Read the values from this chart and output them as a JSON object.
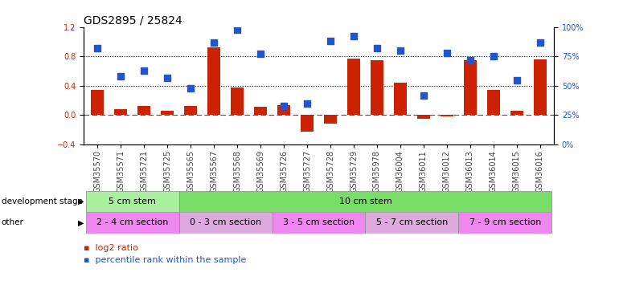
{
  "title": "GDS2895 / 25824",
  "samples": [
    "GSM35570",
    "GSM35571",
    "GSM35721",
    "GSM35725",
    "GSM35565",
    "GSM35567",
    "GSM35568",
    "GSM35569",
    "GSM35726",
    "GSM35727",
    "GSM35728",
    "GSM35729",
    "GSM35978",
    "GSM36004",
    "GSM36011",
    "GSM36012",
    "GSM36013",
    "GSM36014",
    "GSM36015",
    "GSM36016"
  ],
  "log2_ratio": [
    0.34,
    0.08,
    0.12,
    0.06,
    0.12,
    0.92,
    0.38,
    0.11,
    0.14,
    -0.22,
    -0.12,
    0.77,
    0.75,
    0.44,
    -0.05,
    -0.02,
    0.75,
    0.34,
    0.06,
    0.76
  ],
  "percentile": [
    82,
    58,
    63,
    57,
    48,
    87,
    98,
    77,
    33,
    35,
    88,
    92,
    82,
    80,
    42,
    78,
    72,
    75,
    55,
    87
  ],
  "bar_color": "#cc2200",
  "dot_color": "#2255cc",
  "ylim_left": [
    -0.4,
    1.2
  ],
  "ylim_right": [
    0,
    100
  ],
  "yticks_left": [
    -0.4,
    0.0,
    0.4,
    0.8,
    1.2
  ],
  "yticks_right": [
    0,
    25,
    50,
    75,
    100
  ],
  "hlines": [
    0.8,
    0.4
  ],
  "hline_zero_color": "#cc2200",
  "dev_stage_groups": [
    {
      "label": "5 cm stem",
      "start": 0,
      "end": 4,
      "color": "#aaeea0"
    },
    {
      "label": "10 cm stem",
      "start": 4,
      "end": 20,
      "color": "#77dd66"
    }
  ],
  "other_groups": [
    {
      "label": "2 - 4 cm section",
      "start": 0,
      "end": 4,
      "color": "#ee88ee"
    },
    {
      "label": "0 - 3 cm section",
      "start": 4,
      "end": 8,
      "color": "#ddaadd"
    },
    {
      "label": "3 - 5 cm section",
      "start": 8,
      "end": 12,
      "color": "#ee88ee"
    },
    {
      "label": "5 - 7 cm section",
      "start": 12,
      "end": 16,
      "color": "#ddaadd"
    },
    {
      "label": "7 - 9 cm section",
      "start": 16,
      "end": 20,
      "color": "#ee88ee"
    }
  ],
  "bar_width": 0.55,
  "dot_size": 40,
  "background_color": "#ffffff",
  "title_fontsize": 10,
  "tick_fontsize": 7,
  "label_fontsize": 8,
  "group_fontsize": 8
}
